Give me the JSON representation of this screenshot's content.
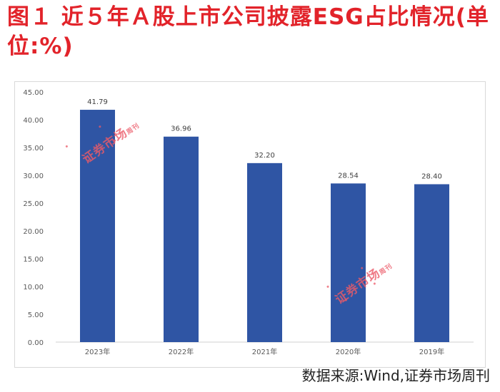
{
  "header": {
    "title": "图１ 近５年Ａ股上市公司披露ESG占比情况(单位:%)"
  },
  "source": "数据来源:Wind,证券市场周刊",
  "watermark": {
    "text": "证券市场",
    "small_text": "周刊"
  },
  "colors": {
    "title": "#e2232a",
    "bar": "#2f55a4",
    "watermark": "#ec5a68"
  },
  "chart_data": {
    "type": "bar",
    "categories": [
      "2023年",
      "2022年",
      "2021年",
      "2020年",
      "2019年"
    ],
    "values": [
      41.79,
      36.96,
      32.2,
      28.54,
      28.4
    ],
    "value_labels": [
      "41.79",
      "36.96",
      "32.20",
      "28.54",
      "28.40"
    ],
    "ylim": [
      0,
      45
    ],
    "yticks": [
      0,
      5,
      10,
      15,
      20,
      25,
      30,
      35,
      40,
      45
    ],
    "ytick_labels": [
      "0.00",
      "5.00",
      "10.00",
      "15.00",
      "20.00",
      "25.00",
      "30.00",
      "35.00",
      "40.00",
      "45.00"
    ],
    "grid": false,
    "legend": "none"
  }
}
